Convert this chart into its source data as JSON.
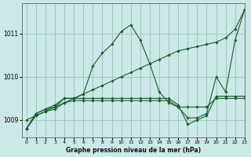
{
  "title": "Graphe pression niveau de la mer (hPa)",
  "bg_color": "#cce8e8",
  "grid_color": "#99ccbb",
  "line_color": "#1a5c2a",
  "xlim": [
    -0.5,
    23
  ],
  "ylim": [
    1008.6,
    1011.7
  ],
  "yticks": [
    1009,
    1010,
    1011
  ],
  "xticks": [
    0,
    1,
    2,
    3,
    4,
    5,
    6,
    7,
    8,
    9,
    10,
    11,
    12,
    13,
    14,
    15,
    16,
    17,
    18,
    19,
    20,
    21,
    22,
    23
  ],
  "series": [
    {
      "x": [
        0,
        1,
        2,
        3,
        4,
        5,
        6,
        7,
        8,
        9,
        10,
        11,
        12,
        13,
        14,
        15,
        16,
        17,
        18,
        19,
        20,
        21,
        22,
        23
      ],
      "y": [
        1008.8,
        1009.15,
        1009.25,
        1009.35,
        1009.5,
        1009.5,
        1009.6,
        1010.25,
        1010.55,
        1010.75,
        1011.05,
        1011.2,
        1010.85,
        1010.3,
        1009.65,
        1009.4,
        1009.3,
        1009.05,
        1009.05,
        1009.15,
        1010.0,
        1009.65,
        1010.85,
        1011.55
      ]
    },
    {
      "x": [
        0,
        1,
        2,
        3,
        4,
        5,
        6,
        7,
        8,
        9,
        10,
        11,
        12,
        13,
        14,
        15,
        16,
        17,
        18,
        19,
        20,
        21,
        22,
        23
      ],
      "y": [
        1009.0,
        1009.1,
        1009.2,
        1009.3,
        1009.4,
        1009.5,
        1009.6,
        1009.7,
        1009.8,
        1009.9,
        1010.0,
        1010.1,
        1010.2,
        1010.3,
        1010.4,
        1010.5,
        1010.6,
        1010.65,
        1010.7,
        1010.75,
        1010.8,
        1010.9,
        1011.1,
        1011.55
      ]
    },
    {
      "x": [
        0,
        1,
        2,
        3,
        4,
        5,
        6,
        7,
        8,
        9,
        10,
        11,
        12,
        13,
        14,
        15,
        16,
        17,
        18,
        19,
        20,
        21,
        22,
        23
      ],
      "y": [
        1008.8,
        1009.1,
        1009.2,
        1009.25,
        1009.4,
        1009.45,
        1009.45,
        1009.45,
        1009.45,
        1009.45,
        1009.45,
        1009.45,
        1009.45,
        1009.45,
        1009.45,
        1009.45,
        1009.3,
        1009.3,
        1009.3,
        1009.3,
        1009.5,
        1009.5,
        1009.5,
        1009.5
      ]
    },
    {
      "x": [
        0,
        1,
        2,
        3,
        4,
        5,
        6,
        7,
        8,
        9,
        10,
        11,
        12,
        13,
        14,
        15,
        16,
        17,
        18,
        19,
        20,
        21,
        22,
        23
      ],
      "y": [
        1008.8,
        1009.15,
        1009.25,
        1009.3,
        1009.5,
        1009.5,
        1009.5,
        1009.5,
        1009.5,
        1009.5,
        1009.5,
        1009.5,
        1009.5,
        1009.5,
        1009.5,
        1009.5,
        1009.35,
        1008.9,
        1009.0,
        1009.1,
        1009.55,
        1009.55,
        1009.55,
        1009.55
      ]
    }
  ]
}
